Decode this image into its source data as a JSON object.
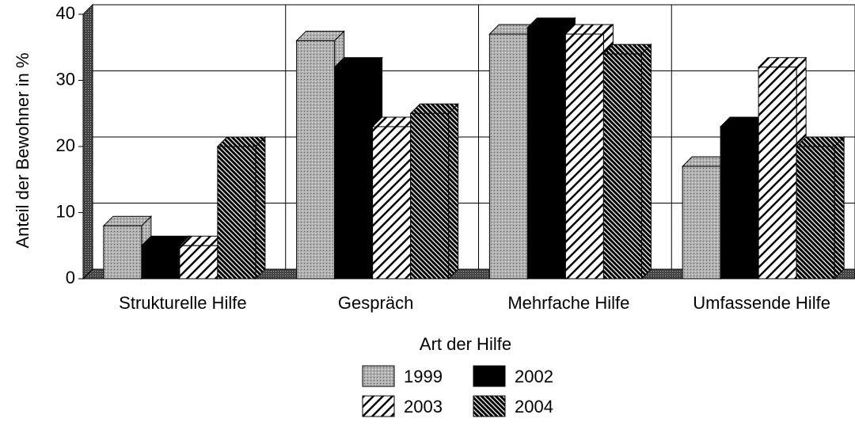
{
  "chart_data": {
    "type": "bar",
    "x_label": "Art der Hilfe",
    "y_label": "Anteil der Bewohner in %",
    "categories": [
      "Strukturelle Hilfe",
      "Gespräch",
      "Mehrfache Hilfe",
      "Umfassende Hilfe"
    ],
    "series": [
      {
        "name": "1999",
        "color": "#a0a0a0",
        "values": [
          8,
          36,
          37,
          17
        ]
      },
      {
        "name": "2002",
        "color": "#000000",
        "values": [
          5,
          32,
          38,
          23
        ]
      },
      {
        "name": "2003",
        "color": "#ffffff",
        "values": [
          5,
          23,
          37,
          32
        ]
      },
      {
        "name": "2004",
        "color": "#303030",
        "values": [
          20,
          25,
          34,
          20
        ]
      }
    ],
    "ylim": [
      0,
      40
    ],
    "yticks": [
      0,
      10,
      20,
      30,
      40
    ],
    "grid": true
  }
}
